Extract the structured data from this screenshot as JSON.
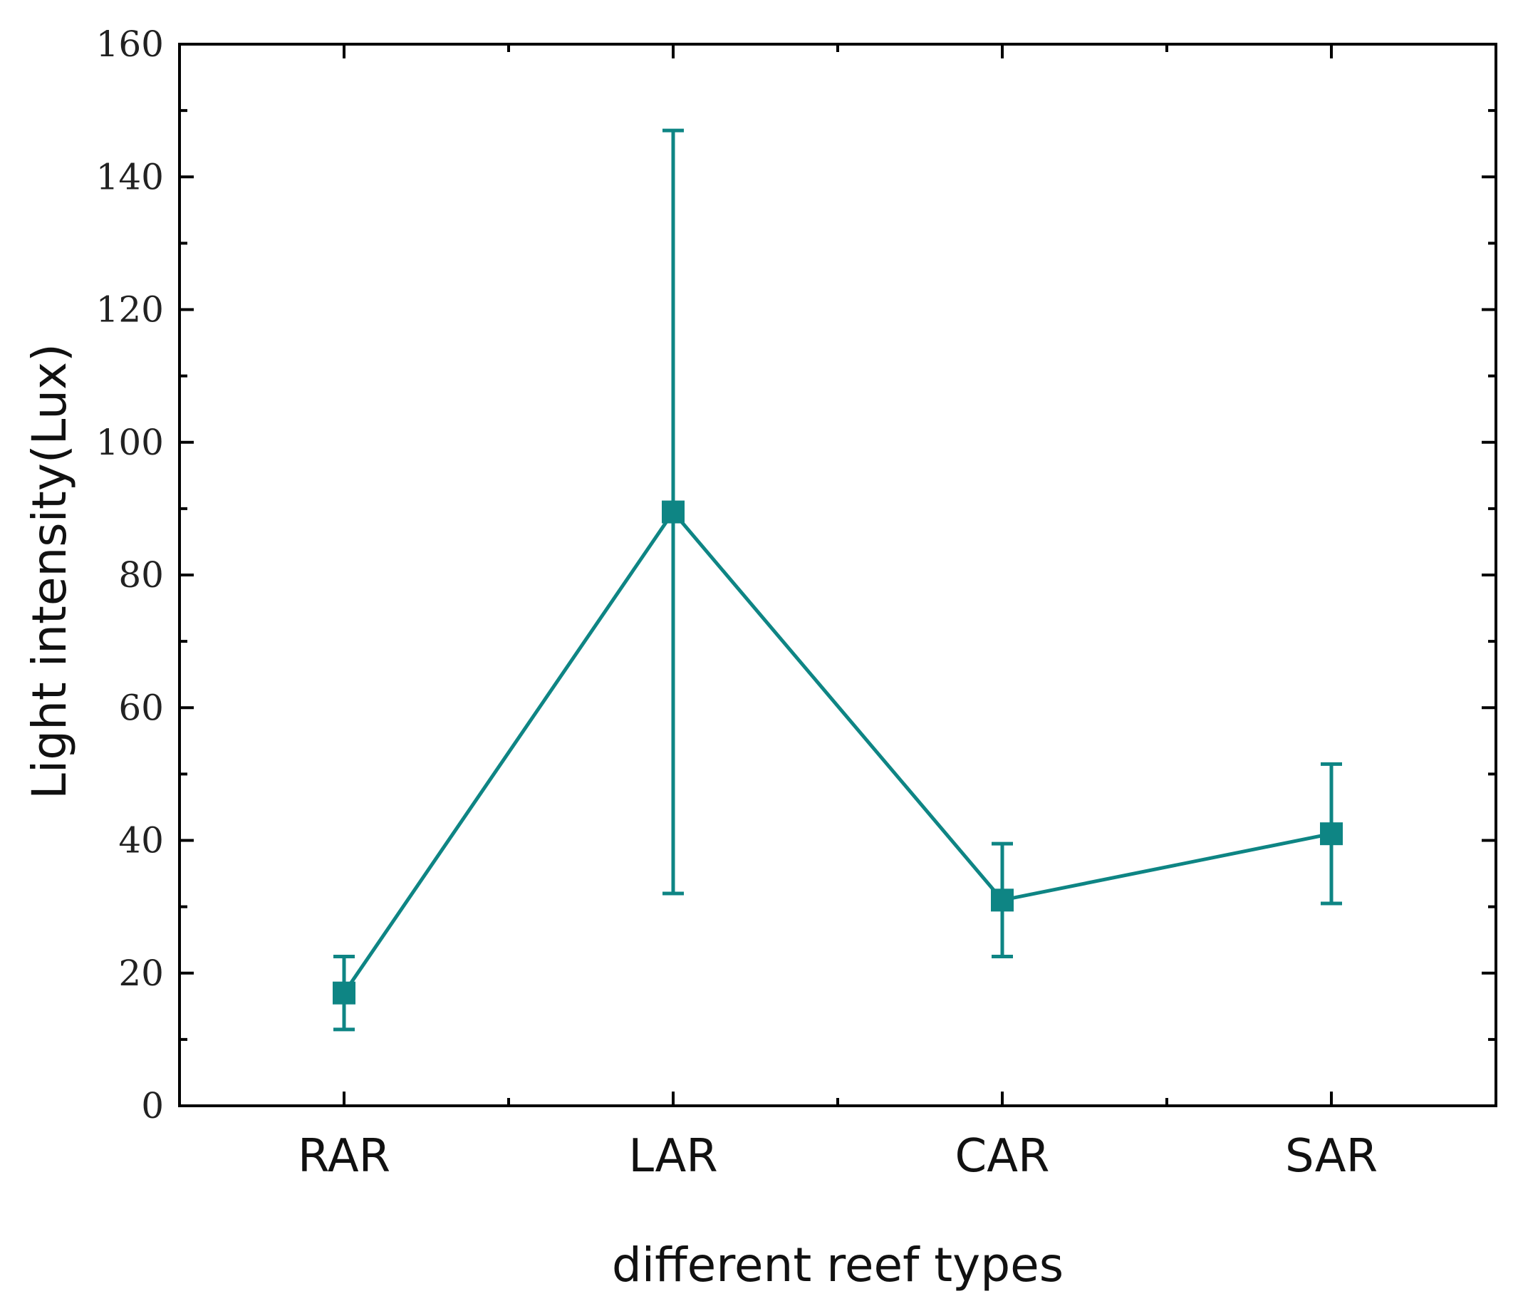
{
  "chart_data": {
    "type": "line",
    "title": "",
    "xlabel": "different reef types",
    "ylabel": "Light intensity(Lux)",
    "categories": [
      "RAR",
      "LAR",
      "CAR",
      "SAR"
    ],
    "series": [
      {
        "name": "Light intensity",
        "values": [
          17,
          89.5,
          31,
          41
        ],
        "error_low": [
          11.5,
          32,
          22.5,
          30.5
        ],
        "error_high": [
          22.5,
          147,
          39.5,
          51.5
        ]
      }
    ],
    "ylim": [
      0,
      160
    ],
    "yticks": [
      0,
      20,
      40,
      60,
      80,
      100,
      120,
      140,
      160
    ],
    "yticks_minor": [
      10,
      30,
      50,
      70,
      90,
      110,
      130,
      150
    ],
    "grid": false,
    "color": "#0e8584",
    "axis_color": "#000000"
  }
}
